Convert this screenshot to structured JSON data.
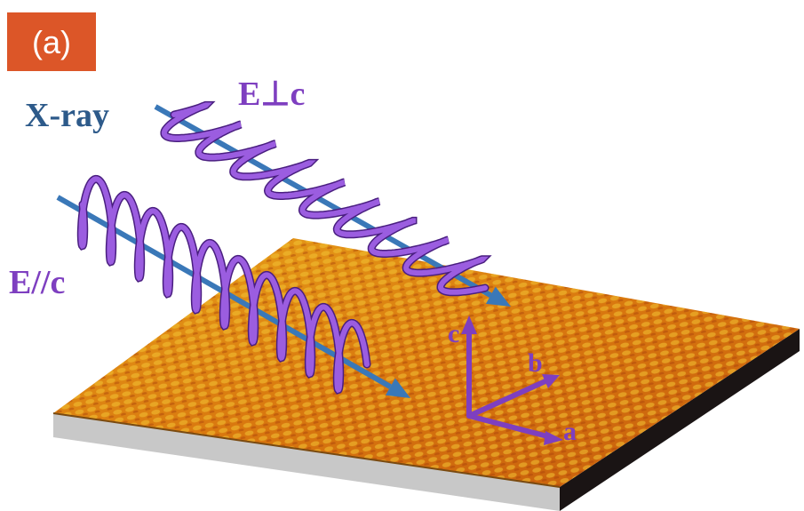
{
  "panel_label": "(a)",
  "labels": {
    "xray": "X-ray",
    "e_perp": "E⊥c",
    "e_par": "E//c"
  },
  "axes": {
    "c": "c",
    "b": "b",
    "a": "a"
  }
}
